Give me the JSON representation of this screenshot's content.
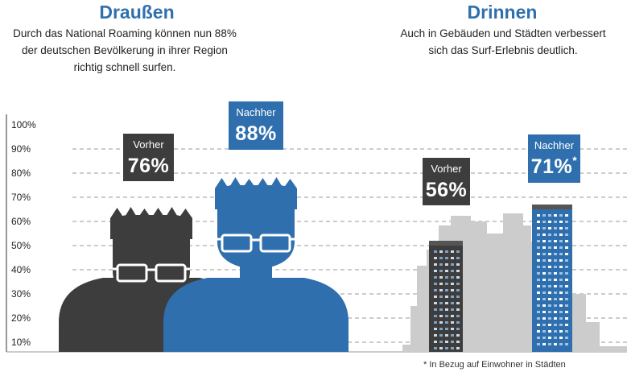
{
  "sections": {
    "outside": {
      "title": "Draußen",
      "desc_lines": [
        "Durch das National Roaming können nun 88%",
        "der deutschen Bevölkerung in ihrer Region",
        "richtig schnell surfen."
      ]
    },
    "inside": {
      "title": "Drinnen",
      "desc_lines": [
        "Auch in Gebäuden und Städten verbessert",
        "sich das Surf-Erlebnis deutlich."
      ]
    }
  },
  "labels": {
    "outside_before": {
      "label": "Vorher",
      "value": "76%"
    },
    "outside_after": {
      "label": "Nachher",
      "value": "88%"
    },
    "inside_before": {
      "label": "Vorher",
      "value": "56%"
    },
    "inside_after": {
      "label": "Nachher",
      "value": "71%",
      "mark": "*"
    }
  },
  "footnote": "* In Bezug auf Einwohner in Städten",
  "colors": {
    "before": "#3d3d3d",
    "after": "#2f6fae",
    "city": "#cccccc",
    "grid": "#9a9a9a"
  },
  "chart_data": {
    "type": "bar",
    "ylim": [
      0,
      100
    ],
    "y_ticks": [
      "10%",
      "20%",
      "30%",
      "40%",
      "50%",
      "60%",
      "70%",
      "80%",
      "90%",
      "100%"
    ],
    "grid": "dashed",
    "groups": [
      {
        "name": "Draußen",
        "icon": "person",
        "bars": [
          {
            "label": "Vorher",
            "value": 76
          },
          {
            "label": "Nachher",
            "value": 88
          }
        ]
      },
      {
        "name": "Drinnen",
        "icon": "building",
        "bars": [
          {
            "label": "Vorher",
            "value": 56
          },
          {
            "label": "Nachher",
            "value": 71
          }
        ]
      }
    ]
  }
}
